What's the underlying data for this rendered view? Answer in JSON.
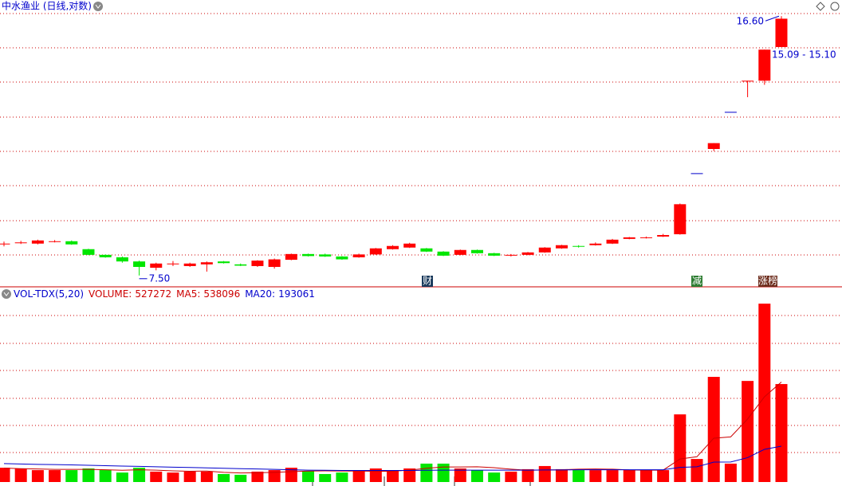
{
  "chart_data": [
    {
      "type": "candlestick",
      "title": "中水渔业 (日线,对数)",
      "log_scale": true,
      "ylim": [
        7.28,
        17.44
      ],
      "up_color": "#ff0000",
      "down_color": "#00e600",
      "flat_color": "#0000cc",
      "open": [
        8.27,
        8.3,
        8.27,
        8.33,
        8.33,
        8.13,
        7.99,
        7.93,
        7.83,
        7.68,
        7.78,
        7.72,
        7.76,
        7.83,
        7.76,
        7.72,
        7.7,
        7.87,
        8.01,
        8.0,
        7.95,
        7.93,
        8.0,
        8.13,
        8.17,
        8.15,
        8.07,
        7.99,
        8.11,
        8.03,
        7.97,
        7.99,
        8.05,
        8.15,
        8.21,
        8.23,
        8.27,
        8.39,
        8.41,
        8.45,
        8.51,
        10.26,
        11.05,
        12.38,
        13.62,
        13.62,
        15.1
      ],
      "high": [
        8.32,
        8.34,
        8.37,
        8.36,
        8.35,
        8.14,
        8.0,
        7.95,
        7.85,
        7.8,
        7.84,
        7.8,
        7.83,
        7.84,
        7.78,
        7.86,
        7.9,
        8.02,
        8.02,
        8.02,
        7.96,
        8.02,
        8.16,
        8.23,
        8.29,
        8.16,
        8.08,
        8.12,
        8.12,
        8.04,
        8.01,
        8.06,
        8.18,
        8.24,
        8.23,
        8.3,
        8.39,
        8.44,
        8.45,
        8.52,
        9.35,
        10.26,
        11.25,
        12.38,
        13.62,
        14.98,
        16.6
      ],
      "low": [
        8.2,
        8.26,
        8.25,
        8.3,
        8.24,
        7.98,
        7.92,
        7.8,
        7.5,
        7.62,
        7.72,
        7.7,
        7.59,
        7.78,
        7.72,
        7.7,
        7.66,
        7.86,
        7.95,
        7.94,
        7.87,
        7.92,
        7.99,
        8.12,
        8.16,
        8.06,
        7.96,
        7.98,
        8.02,
        7.96,
        7.95,
        7.98,
        8.04,
        8.14,
        8.17,
        8.22,
        8.26,
        8.38,
        8.4,
        8.44,
        8.5,
        10.26,
        10.98,
        12.38,
        12.95,
        13.45,
        15.1
      ],
      "close": [
        8.27,
        8.3,
        8.35,
        8.33,
        8.25,
        7.99,
        7.93,
        7.83,
        7.7,
        7.78,
        7.78,
        7.78,
        7.81,
        7.79,
        7.73,
        7.85,
        7.88,
        8.01,
        7.96,
        7.95,
        7.88,
        8.0,
        8.15,
        8.21,
        8.27,
        8.07,
        7.97,
        8.11,
        8.03,
        7.97,
        7.99,
        8.05,
        8.17,
        8.23,
        8.19,
        8.27,
        8.37,
        8.43,
        8.43,
        8.49,
        9.33,
        10.26,
        11.25,
        12.38,
        13.62,
        14.98,
        16.47
      ],
      "annotations": [
        "16.60",
        "7.50",
        "15.09 - 15.10"
      ],
      "event_markers": [
        "财",
        "减",
        "涨榜"
      ]
    },
    {
      "type": "volume",
      "title": "VOL-TDX(5,20)",
      "ylim": [
        0,
        1042000
      ],
      "series": [
        {
          "name": "VOLUME:",
          "values": [
            77000,
            73000,
            64000,
            64000,
            64000,
            73000,
            64000,
            51000,
            77000,
            56000,
            51000,
            56000,
            56000,
            43000,
            39000,
            56000,
            64000,
            77000,
            60000,
            43000,
            51000,
            64000,
            73000,
            60000,
            73000,
            99000,
            99000,
            73000,
            64000,
            51000,
            56000,
            69000,
            86000,
            69000,
            64000,
            64000,
            64000,
            64000,
            64000,
            64000,
            364000,
            124000,
            566000,
            99000,
            544000,
            960000,
            527272
          ]
        },
        {
          "name": "MA5:",
          "color": "#cc0000",
          "values": [
            75000,
            72000,
            70000,
            68000,
            68000,
            68000,
            66000,
            63000,
            66000,
            64000,
            60000,
            58000,
            59000,
            52000,
            49000,
            50000,
            52000,
            56000,
            59000,
            60000,
            59000,
            59000,
            58000,
            58000,
            64000,
            74000,
            81000,
            81000,
            82000,
            77000,
            69000,
            63000,
            65000,
            66000,
            69000,
            70000,
            69000,
            65000,
            64000,
            64000,
            124000,
            136000,
            236000,
            243000,
            339000,
            459000,
            538096
          ]
        },
        {
          "name": "MA20:",
          "color": "#0000cc",
          "values": [
            99000,
            97000,
            95000,
            94000,
            92000,
            90000,
            88000,
            86000,
            84000,
            82000,
            80000,
            78000,
            76000,
            74000,
            72000,
            70000,
            68000,
            66000,
            64000,
            63000,
            62000,
            62000,
            62000,
            62000,
            62000,
            63000,
            64000,
            64000,
            64000,
            64000,
            64000,
            64000,
            65000,
            65000,
            66000,
            66000,
            66000,
            66000,
            66000,
            66000,
            79000,
            82000,
            107000,
            108000,
            131000,
            176000,
            193061
          ]
        }
      ]
    }
  ]
}
